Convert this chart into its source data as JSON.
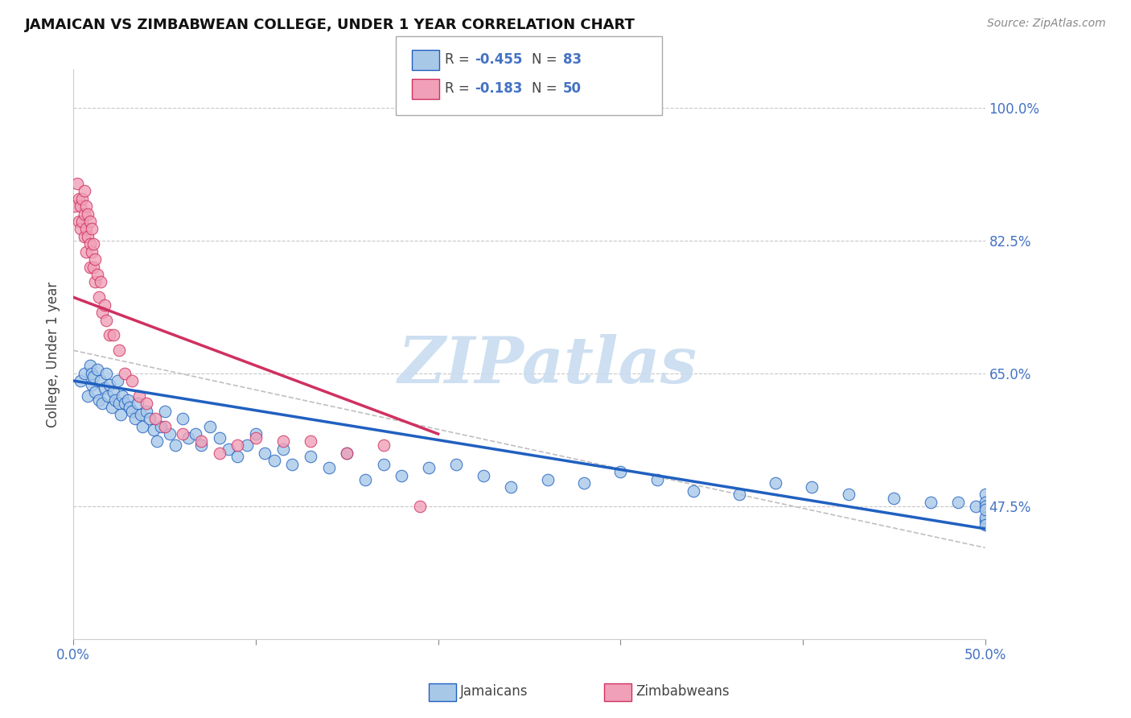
{
  "title": "JAMAICAN VS ZIMBABWEAN COLLEGE, UNDER 1 YEAR CORRELATION CHART",
  "source": "Source: ZipAtlas.com",
  "ylabel": "College, Under 1 year",
  "y_ticks": [
    0.475,
    0.65,
    0.825,
    1.0
  ],
  "y_tick_labels": [
    "47.5%",
    "65.0%",
    "82.5%",
    "100.0%"
  ],
  "jamaicans_R": -0.455,
  "jamaicans_N": 83,
  "zimbabweans_R": -0.183,
  "zimbabweans_N": 50,
  "xlim": [
    0.0,
    0.5
  ],
  "ylim": [
    0.3,
    1.05
  ],
  "jamaican_color": "#A8C8E8",
  "zimbabwean_color": "#F0A0B8",
  "jamaican_line_color": "#2060C0",
  "zimbabwean_line_color": "#D03060",
  "combined_line_color": "#C0C0C0",
  "watermark": "ZIPatlas",
  "watermark_color": "#C8DCF0",
  "legend_jamaican_label": "Jamaicans",
  "legend_zimbabwean_label": "Zimbabweans",
  "jamaican_x": [
    0.004,
    0.006,
    0.008,
    0.009,
    0.01,
    0.01,
    0.011,
    0.012,
    0.013,
    0.014,
    0.015,
    0.016,
    0.017,
    0.018,
    0.019,
    0.02,
    0.021,
    0.022,
    0.023,
    0.024,
    0.025,
    0.026,
    0.027,
    0.028,
    0.03,
    0.031,
    0.032,
    0.034,
    0.035,
    0.037,
    0.038,
    0.04,
    0.042,
    0.044,
    0.046,
    0.048,
    0.05,
    0.053,
    0.056,
    0.06,
    0.063,
    0.067,
    0.07,
    0.075,
    0.08,
    0.085,
    0.09,
    0.095,
    0.1,
    0.105,
    0.11,
    0.115,
    0.12,
    0.13,
    0.14,
    0.15,
    0.16,
    0.17,
    0.18,
    0.195,
    0.21,
    0.225,
    0.24,
    0.26,
    0.28,
    0.3,
    0.32,
    0.34,
    0.365,
    0.385,
    0.405,
    0.425,
    0.45,
    0.47,
    0.485,
    0.495,
    0.5,
    0.5,
    0.5,
    0.5,
    0.5,
    0.5,
    0.5
  ],
  "jamaican_y": [
    0.64,
    0.65,
    0.62,
    0.66,
    0.635,
    0.65,
    0.645,
    0.625,
    0.655,
    0.615,
    0.64,
    0.61,
    0.63,
    0.65,
    0.62,
    0.635,
    0.605,
    0.625,
    0.615,
    0.64,
    0.61,
    0.595,
    0.62,
    0.61,
    0.615,
    0.605,
    0.6,
    0.59,
    0.61,
    0.595,
    0.58,
    0.6,
    0.59,
    0.575,
    0.56,
    0.58,
    0.6,
    0.57,
    0.555,
    0.59,
    0.565,
    0.57,
    0.555,
    0.58,
    0.565,
    0.55,
    0.54,
    0.555,
    0.57,
    0.545,
    0.535,
    0.55,
    0.53,
    0.54,
    0.525,
    0.545,
    0.51,
    0.53,
    0.515,
    0.525,
    0.53,
    0.515,
    0.5,
    0.51,
    0.505,
    0.52,
    0.51,
    0.495,
    0.49,
    0.505,
    0.5,
    0.49,
    0.485,
    0.48,
    0.48,
    0.475,
    0.49,
    0.48,
    0.475,
    0.455,
    0.46,
    0.47,
    0.45
  ],
  "zimbabwean_x": [
    0.001,
    0.002,
    0.003,
    0.003,
    0.004,
    0.004,
    0.005,
    0.005,
    0.006,
    0.006,
    0.006,
    0.007,
    0.007,
    0.007,
    0.008,
    0.008,
    0.009,
    0.009,
    0.009,
    0.01,
    0.01,
    0.011,
    0.011,
    0.012,
    0.012,
    0.013,
    0.014,
    0.015,
    0.016,
    0.017,
    0.018,
    0.02,
    0.022,
    0.025,
    0.028,
    0.032,
    0.036,
    0.04,
    0.045,
    0.05,
    0.06,
    0.07,
    0.08,
    0.09,
    0.1,
    0.115,
    0.13,
    0.15,
    0.17,
    0.19
  ],
  "zimbabwean_y": [
    0.87,
    0.9,
    0.88,
    0.85,
    0.87,
    0.84,
    0.88,
    0.85,
    0.89,
    0.86,
    0.83,
    0.87,
    0.84,
    0.81,
    0.86,
    0.83,
    0.85,
    0.82,
    0.79,
    0.84,
    0.81,
    0.82,
    0.79,
    0.8,
    0.77,
    0.78,
    0.75,
    0.77,
    0.73,
    0.74,
    0.72,
    0.7,
    0.7,
    0.68,
    0.65,
    0.64,
    0.62,
    0.61,
    0.59,
    0.58,
    0.57,
    0.56,
    0.545,
    0.555,
    0.565,
    0.56,
    0.56,
    0.545,
    0.555,
    0.475
  ],
  "jamaican_trend": [
    0.0,
    0.5,
    0.64,
    0.445
  ],
  "zimbabwean_trend": [
    0.0,
    0.2,
    0.75,
    0.57
  ],
  "combined_trend": [
    0.0,
    0.5,
    0.68,
    0.42
  ]
}
